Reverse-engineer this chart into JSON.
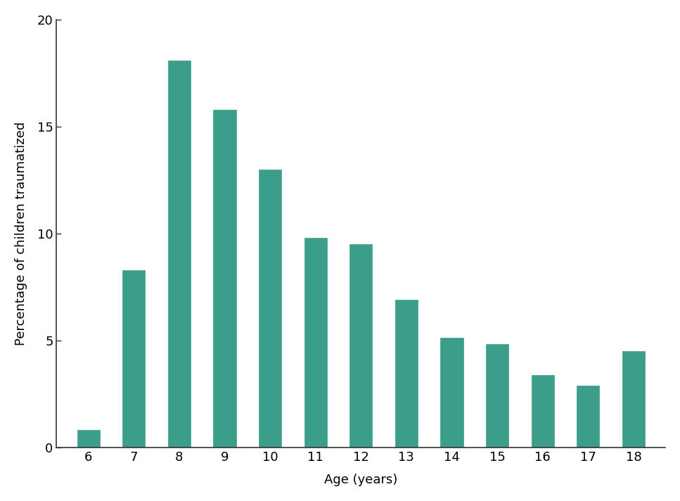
{
  "ages": [
    6,
    7,
    8,
    9,
    10,
    11,
    12,
    13,
    14,
    15,
    16,
    17,
    18
  ],
  "values": [
    0.85,
    8.3,
    18.1,
    15.8,
    13.0,
    9.8,
    9.5,
    6.9,
    5.15,
    4.85,
    3.4,
    2.9,
    4.5
  ],
  "bar_color": "#3a9e8a",
  "bar_edgecolor": "#3a9e8a",
  "xlabel": "Age (years)",
  "ylabel": "Percentage of children traumatized",
  "ylim": [
    0,
    20
  ],
  "yticks": [
    0,
    5,
    10,
    15,
    20
  ],
  "background_color": "#ffffff",
  "xlabel_fontsize": 13,
  "ylabel_fontsize": 13,
  "tick_fontsize": 13,
  "bar_width": 0.5
}
